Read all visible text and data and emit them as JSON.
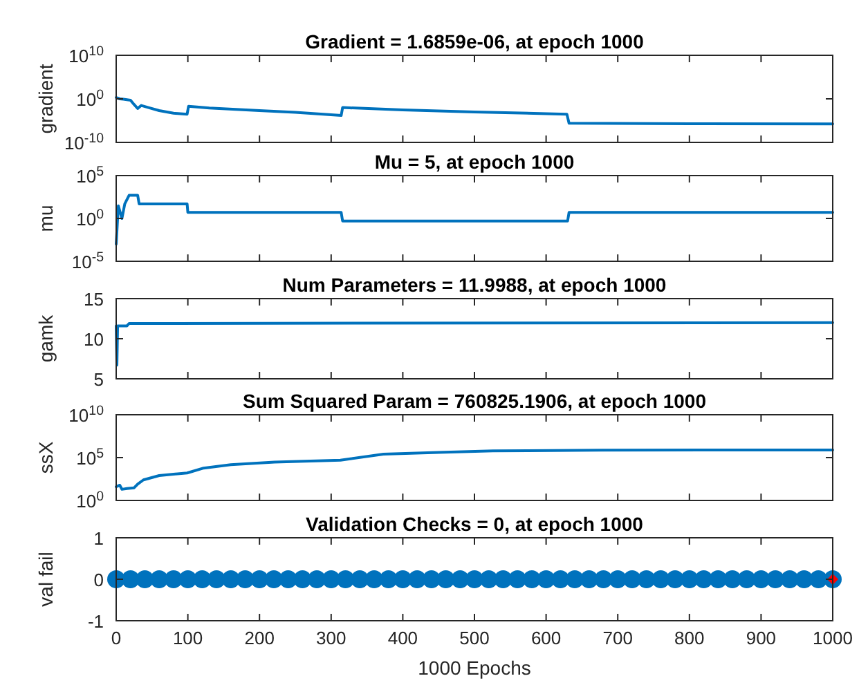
{
  "chart_data": [
    {
      "type": "line",
      "title": "Gradient = 1.6859e-06, at epoch 1000",
      "ylabel": "gradient",
      "log": "y",
      "xlim": [
        0,
        1000
      ],
      "xticks": [
        0,
        100,
        200,
        300,
        400,
        500,
        600,
        700,
        800,
        900,
        1000
      ],
      "ylim": [
        1e-10,
        10000000000.0
      ],
      "yticks": [
        {
          "value": 1e-10,
          "label": "10$^{-10}$"
        },
        {
          "value": 1,
          "label": "10$^{0}$"
        },
        {
          "value": 10000000000.0,
          "label": "10$^{10}$"
        }
      ],
      "tick_labels": "y",
      "series": [
        {
          "color": "#0072bd",
          "x": [
            0,
            5,
            10,
            20,
            25,
            30,
            35,
            45,
            60,
            80,
            99,
            101,
            130,
            200,
            250,
            314,
            316,
            400,
            500,
            629,
            632,
            800,
            1000
          ],
          "values": [
            2,
            1,
            0.8,
            0.5,
            0.05,
            0.006,
            0.03,
            0.01,
            0.002,
            0.0005,
            0.0003,
            0.02,
            0.008,
            0.002,
            0.0008,
            0.00015,
            0.01,
            0.003,
            0.001,
            0.0003,
            2.5e-06,
            1.9e-06,
            1.6859e-06
          ]
        }
      ]
    },
    {
      "type": "line",
      "title": "Mu = 5, at epoch 1000",
      "ylabel": "mu",
      "log": "y",
      "xlim": [
        0,
        1000
      ],
      "xticks": [
        0,
        100,
        200,
        300,
        400,
        500,
        600,
        700,
        800,
        900,
        1000
      ],
      "ylim": [
        1e-05,
        100000.0
      ],
      "yticks": [
        {
          "value": 1e-05,
          "label": "10$^{-5}$"
        },
        {
          "value": 1,
          "label": "10$^{0}$"
        },
        {
          "value": 100000.0,
          "label": "10$^{5}$"
        }
      ],
      "tick_labels": "y",
      "series": [
        {
          "color": "#0072bd",
          "x": [
            0,
            3,
            8,
            12,
            18,
            30,
            32,
            99,
            100,
            314,
            316,
            630,
            632,
            1000
          ],
          "values": [
            0.001,
            30,
            1,
            50,
            500,
            500,
            50,
            50,
            5,
            5,
            0.5,
            0.5,
            5,
            5
          ]
        }
      ]
    },
    {
      "type": "line",
      "title": "Num Parameters = 11.9988, at epoch 1000",
      "ylabel": "gamk",
      "xlim": [
        0,
        1000
      ],
      "xticks": [
        0,
        100,
        200,
        300,
        400,
        500,
        600,
        700,
        800,
        900,
        1000
      ],
      "ylim": [
        5,
        15
      ],
      "yticks": [
        5,
        10,
        15
      ],
      "tick_labels": "y",
      "series": [
        {
          "color": "#0072bd",
          "x": [
            0,
            1,
            2,
            15,
            18,
            1000
          ],
          "values": [
            11.6,
            6.7,
            11.6,
            11.6,
            11.9,
            12
          ]
        }
      ]
    },
    {
      "type": "line",
      "title": "Sum Squared Param = 760825.1906, at epoch 1000",
      "ylabel": "ssX",
      "log": "y",
      "xlim": [
        0,
        1000
      ],
      "xticks": [
        0,
        100,
        200,
        300,
        400,
        500,
        600,
        700,
        800,
        900,
        1000
      ],
      "ylim": [
        1,
        10000000000.0
      ],
      "yticks": [
        {
          "value": 1,
          "label": "10$^{0}$"
        },
        {
          "value": 100000.0,
          "label": "10$^{5}$"
        },
        {
          "value": 10000000000.0,
          "label": "10$^{10}$"
        }
      ],
      "tick_labels": "y",
      "series": [
        {
          "color": "#0072bd",
          "x": [
            0,
            5,
            8,
            15,
            25,
            30,
            38,
            60,
            99,
            122,
            160,
            221,
            313,
            373,
            450,
            526,
            678,
            1000
          ],
          "values": [
            40,
            60,
            20,
            25,
            30,
            80,
            250,
            800,
            1600,
            6000,
            15000,
            30000,
            50000,
            250000,
            400000,
            600000,
            750000,
            760825
          ]
        }
      ]
    },
    {
      "type": "scatter",
      "title": "Validation Checks = 0, at epoch 1000",
      "ylabel": "val fail",
      "xlabel": "1000 Epochs",
      "xlim": [
        0,
        1000
      ],
      "xticks": [
        0,
        100,
        200,
        300,
        400,
        500,
        600,
        700,
        800,
        900,
        1000
      ],
      "ylim": [
        -1,
        1
      ],
      "yticks": [
        -1,
        0,
        1
      ],
      "series": [
        {
          "color": "#0072bd",
          "marker": "circle",
          "x": [
            0,
            20,
            40,
            60,
            80,
            100,
            120,
            140,
            160,
            180,
            200,
            220,
            240,
            260,
            280,
            300,
            320,
            340,
            360,
            380,
            400,
            420,
            440,
            460,
            480,
            500,
            520,
            540,
            560,
            580,
            600,
            620,
            640,
            660,
            680,
            700,
            720,
            740,
            760,
            780,
            800,
            820,
            840,
            860,
            880,
            900,
            920,
            940,
            960,
            980,
            1000
          ],
          "values": [
            0,
            0,
            0,
            0,
            0,
            0,
            0,
            0,
            0,
            0,
            0,
            0,
            0,
            0,
            0,
            0,
            0,
            0,
            0,
            0,
            0,
            0,
            0,
            0,
            0,
            0,
            0,
            0,
            0,
            0,
            0,
            0,
            0,
            0,
            0,
            0,
            0,
            0,
            0,
            0,
            0,
            0,
            0,
            0,
            0,
            0,
            0,
            0,
            0,
            0,
            0
          ]
        },
        {
          "color": "#ff0000",
          "marker": "diamond",
          "x": [
            1000
          ],
          "values": [
            0
          ]
        }
      ]
    }
  ]
}
